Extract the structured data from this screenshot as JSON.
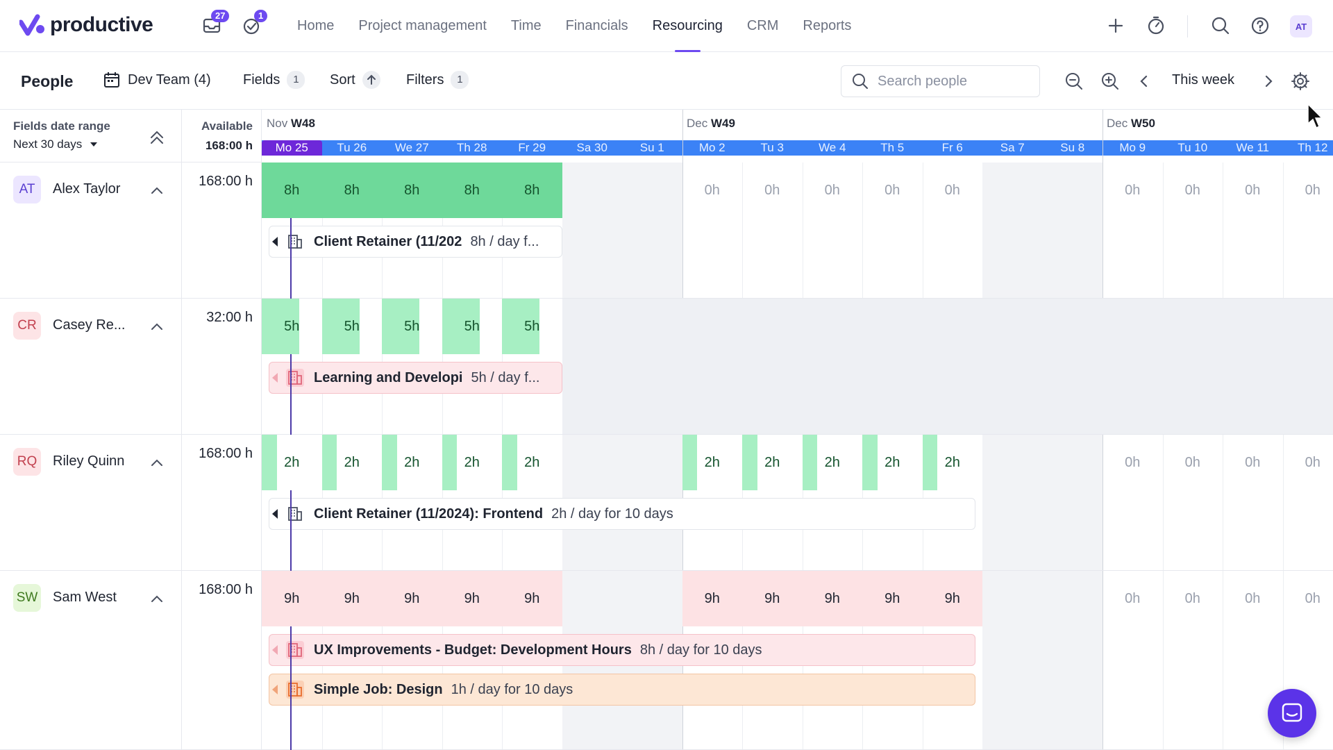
{
  "app": {
    "logo_text": "productive",
    "inbox_badge": "27",
    "tasks_badge": "1",
    "menu": [
      "Home",
      "Project management",
      "Time",
      "Financials",
      "Resourcing",
      "CRM",
      "Reports"
    ],
    "active_menu": "Resourcing",
    "user_initials": "AT",
    "colors": {
      "accent": "#6d4af0",
      "day_bar": "#3b82f6",
      "today": "#6d28d9"
    }
  },
  "toolbar": {
    "title": "People",
    "team_label": "Dev Team (4)",
    "fields_label": "Fields",
    "fields_count": "1",
    "sort_label": "Sort",
    "filters_label": "Filters",
    "filters_count": "1",
    "search_placeholder": "Search people",
    "week_label": "This week"
  },
  "left_header": {
    "fields_date_range_label": "Fields date range",
    "fields_date_range_value": "Next 30 days",
    "available_label": "Available",
    "available_total": "168:00 h"
  },
  "weeks": [
    {
      "month": "Nov",
      "week": "W48"
    },
    {
      "month": "Dec",
      "week": "W49"
    },
    {
      "month": "Dec",
      "week": "W50"
    }
  ],
  "days": [
    "Mo 25",
    "Tu 26",
    "We 27",
    "Th 28",
    "Fr 29",
    "Sa 30",
    "Su 1",
    "Mo 2",
    "Tu 3",
    "We 4",
    "Th 5",
    "Fr 6",
    "Sa 7",
    "Su 8",
    "Mo 9",
    "Tu 10",
    "We 11",
    "Th 12"
  ],
  "people": [
    {
      "initials": "AT",
      "name": "Alex Taylor",
      "available": "168:00 h",
      "avatar_bg": "#ece6ff",
      "avatar_fg": "#5a3fd1",
      "week1_hours": [
        "8h",
        "8h",
        "8h",
        "8h",
        "8h"
      ],
      "week2_hours": [
        "0h",
        "0h",
        "0h",
        "0h",
        "0h"
      ],
      "week3_hours": [
        "0h",
        "0h",
        "0h",
        "0h"
      ],
      "bookings": [
        {
          "title": "Client Retainer (11/202",
          "detail": "8h / day f...",
          "style": "plain"
        }
      ]
    },
    {
      "initials": "CR",
      "name": "Casey Re...",
      "available": "32:00 h",
      "avatar_bg": "#fde4e6",
      "avatar_fg": "#c2414f",
      "week1_hours": [
        "5h",
        "5h",
        "5h",
        "5h",
        "5h"
      ],
      "bookings": [
        {
          "title": "Learning and Developi",
          "detail": "5h / day f...",
          "style": "pink"
        }
      ]
    },
    {
      "initials": "RQ",
      "name": "Riley Quinn",
      "available": "168:00 h",
      "avatar_bg": "#fde4e6",
      "avatar_fg": "#c2414f",
      "week1_hours": [
        "2h",
        "2h",
        "2h",
        "2h",
        "2h"
      ],
      "week2_hours": [
        "2h",
        "2h",
        "2h",
        "2h",
        "2h"
      ],
      "week3_hours": [
        "0h",
        "0h",
        "0h",
        "0h"
      ],
      "bookings": [
        {
          "title": "Client Retainer (11/2024): Frontend",
          "detail": "2h / day for 10 days",
          "style": "plain"
        }
      ]
    },
    {
      "initials": "SW",
      "name": "Sam West",
      "available": "168:00 h",
      "avatar_bg": "#e6f7d9",
      "avatar_fg": "#3f7a1f",
      "week1_hours": [
        "9h",
        "9h",
        "9h",
        "9h",
        "9h"
      ],
      "week2_hours": [
        "9h",
        "9h",
        "9h",
        "9h",
        "9h"
      ],
      "week3_hours": [
        "0h",
        "0h",
        "0h",
        "0h"
      ],
      "bookings": [
        {
          "title": "UX Improvements - Budget: Development Hours",
          "detail": "8h / day for 10 days",
          "style": "pink"
        },
        {
          "title": "Simple Job: Design",
          "detail": "1h / day for 10 days",
          "style": "orange"
        }
      ]
    }
  ]
}
